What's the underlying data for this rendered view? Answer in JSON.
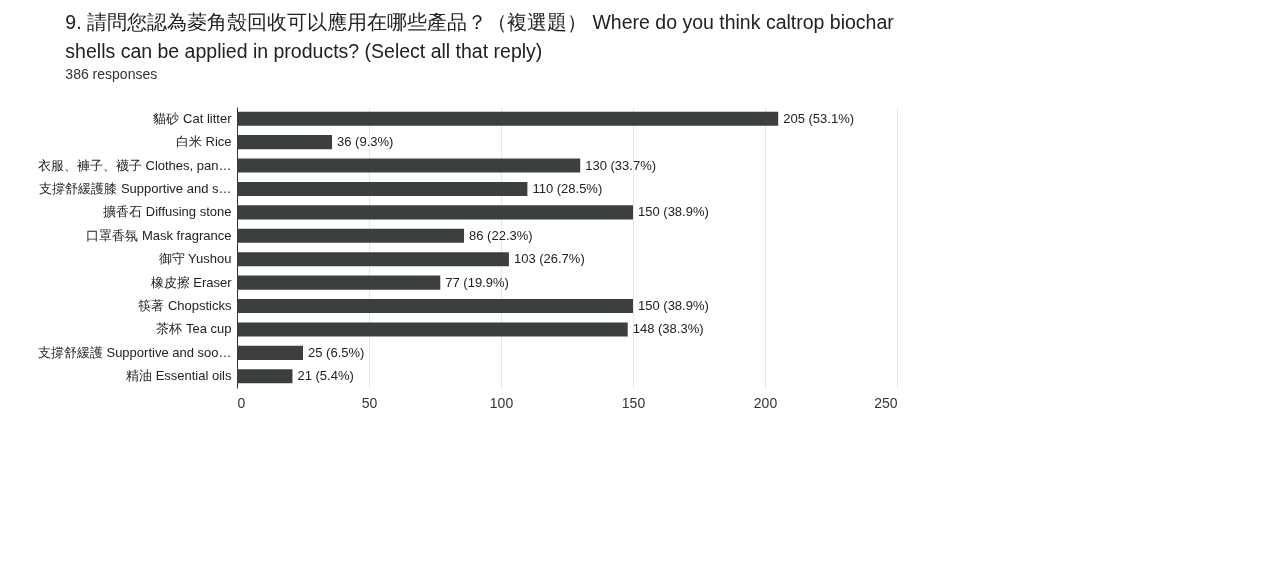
{
  "chart_data": {
    "type": "bar",
    "orientation": "horizontal",
    "title": "9. 請問您認為菱角殼回收可以應用在哪些產品？（複選題） Where do you think caltrop biochar shells can be applied in products? (Select all that reply)",
    "subtitle": "386 responses",
    "categories": [
      "貓砂 Cat litter",
      "白米 Rice",
      "衣服、褲子、襪子 Clothes, pan…",
      "支撐舒緩護膝 Supportive and s…",
      "擴香石 Diffusing stone",
      "口罩香氛 Mask fragrance",
      "御守 Yushou",
      "橡皮擦 Eraser",
      "筷著 Chopsticks",
      "茶杯 Tea cup",
      "支撐舒緩護 Supportive and soo…",
      "精油 Essential oils"
    ],
    "values": [
      205,
      36,
      130,
      110,
      150,
      86,
      103,
      77,
      150,
      148,
      25,
      21
    ],
    "value_labels": [
      "205 (53.1%)",
      "36 (9.3%)",
      "130 (33.7%)",
      "110 (28.5%)",
      "150 (38.9%)",
      "86 (22.3%)",
      "103 (26.7%)",
      "77 (19.9%)",
      "150 (38.9%)",
      "148 (38.3%)",
      "25 (6.5%)",
      "21 (5.4%)"
    ],
    "color": "#3c403d",
    "xlim": [
      0,
      250
    ],
    "xticks": [
      0,
      50,
      100,
      150,
      200,
      250
    ],
    "grid": "x"
  }
}
